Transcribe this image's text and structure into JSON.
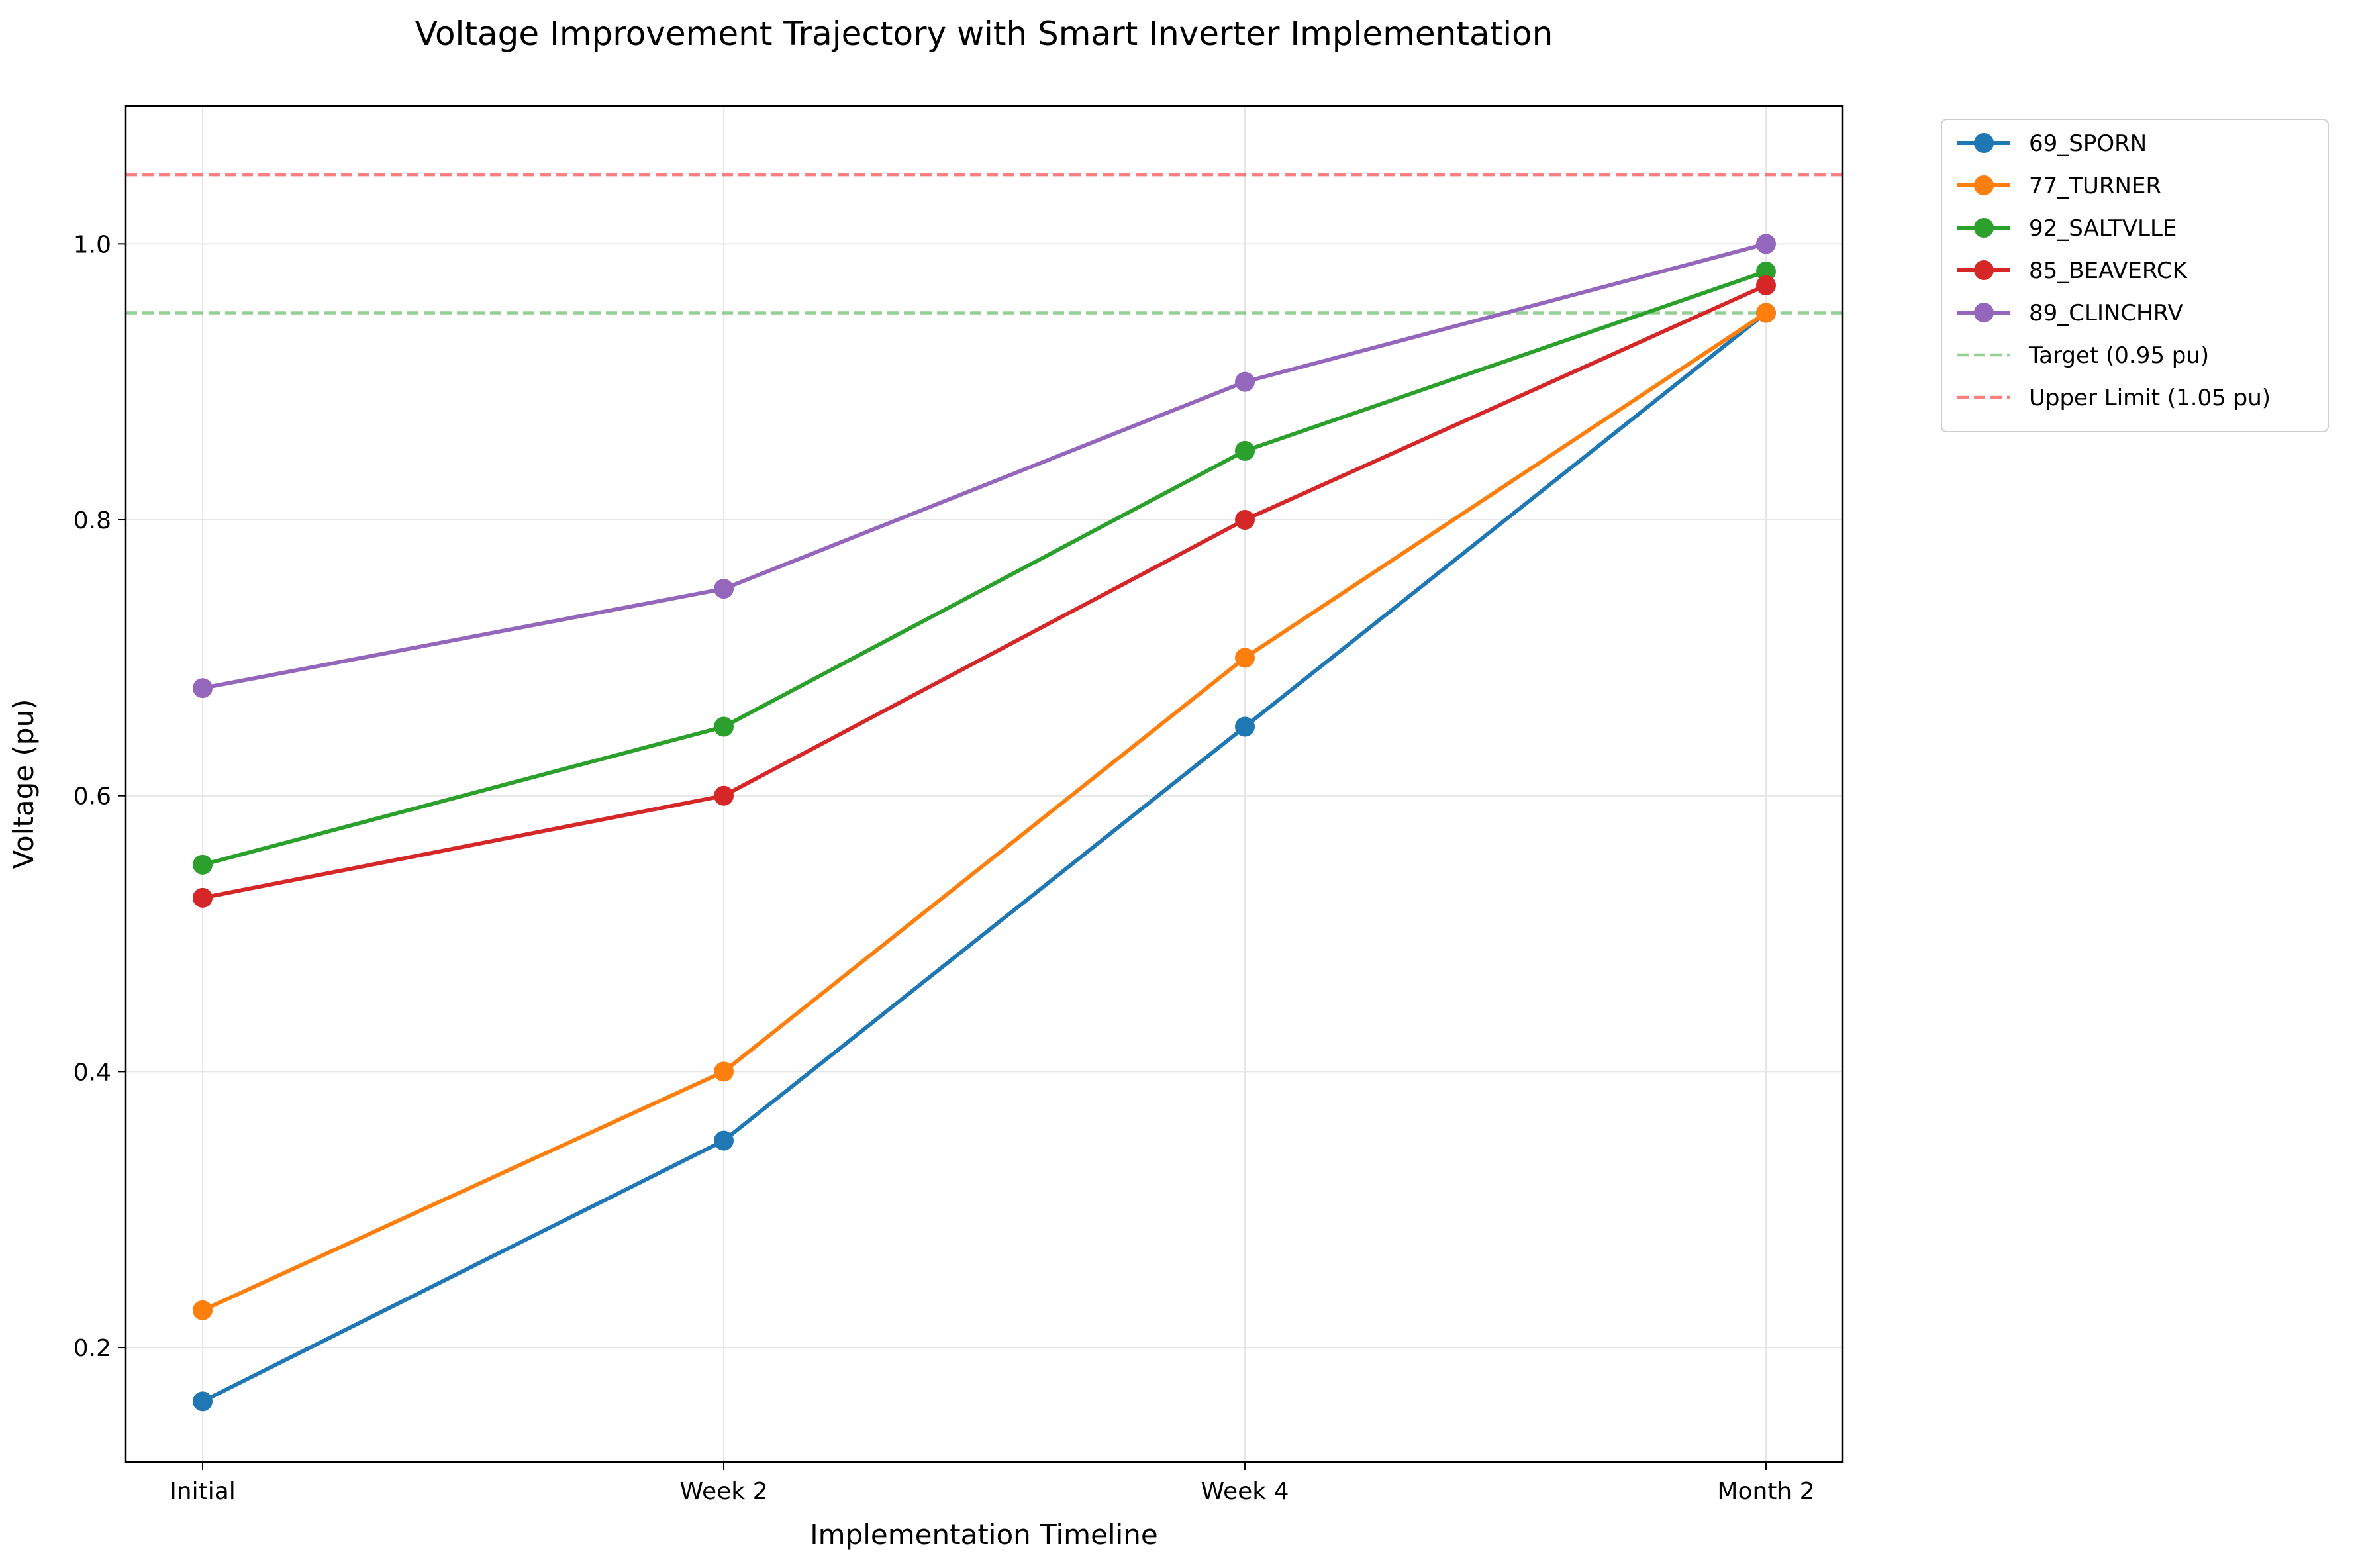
{
  "chart_data": {
    "type": "line",
    "title": "Voltage Improvement Trajectory with Smart Inverter Implementation",
    "xlabel": "Implementation Timeline",
    "ylabel": "Voltage (pu)",
    "categories": [
      "Initial",
      "Week 2",
      "Week 4",
      "Month 2"
    ],
    "ylim": [
      0.117,
      1.1
    ],
    "yticks": [
      0.2,
      0.4,
      0.6,
      0.8,
      1.0
    ],
    "grid": true,
    "legend_position": "outside-top-right",
    "series": [
      {
        "name": "69_SPORN",
        "color": "#1f77b4",
        "values": [
          0.161,
          0.35,
          0.65,
          0.95
        ]
      },
      {
        "name": "77_TURNER",
        "color": "#ff7f0e",
        "values": [
          0.227,
          0.4,
          0.7,
          0.95
        ]
      },
      {
        "name": "92_SALTVLLE",
        "color": "#2ca02c",
        "values": [
          0.55,
          0.65,
          0.85,
          0.98
        ]
      },
      {
        "name": "85_BEAVERCK",
        "color": "#d62728",
        "values": [
          0.526,
          0.6,
          0.8,
          0.97
        ]
      },
      {
        "name": "89_CLINCHRV",
        "color": "#9467bd",
        "values": [
          0.678,
          0.75,
          0.9,
          1.0
        ]
      }
    ],
    "reference_lines": [
      {
        "name": "Target (0.95 pu)",
        "value": 0.95,
        "color": "#2ca02c"
      },
      {
        "name": "Upper Limit (1.05 pu)",
        "value": 1.05,
        "color": "#ff0000"
      }
    ]
  }
}
